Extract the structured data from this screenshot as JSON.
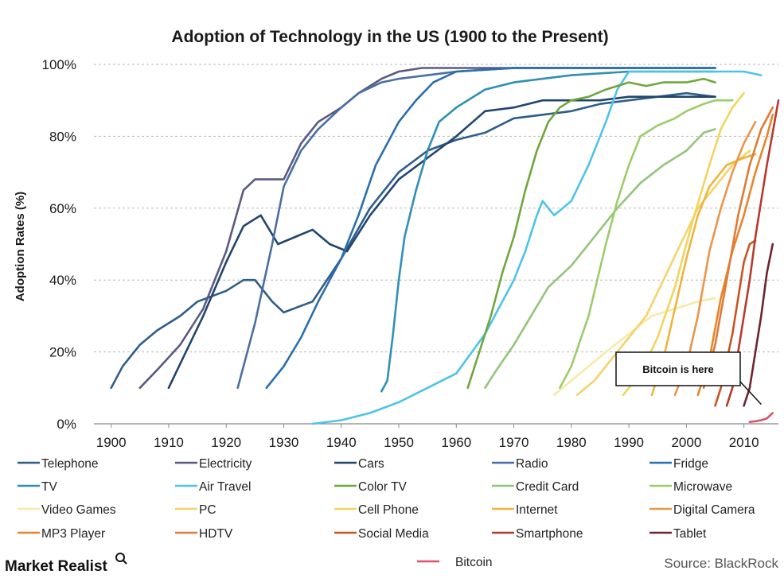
{
  "chart_data": {
    "type": "line",
    "title": "Adoption of Technology in the US (1900 to the Present)",
    "ylabel": "Adoption Rates (%)",
    "xlabel": "",
    "xlim": [
      1897,
      2016
    ],
    "ylim": [
      0,
      100
    ],
    "x_ticks": [
      1900,
      1910,
      1920,
      1930,
      1940,
      1950,
      1960,
      1970,
      1980,
      1990,
      2000,
      2010
    ],
    "x_tick_labels": [
      "1900",
      "1910",
      "1920",
      "1930",
      "1940",
      "1950",
      "1960",
      "1970",
      "1980",
      "1990",
      "2000",
      "2010"
    ],
    "y_ticks": [
      0,
      20,
      40,
      60,
      80,
      100
    ],
    "y_tick_labels": [
      "0%",
      "20%",
      "40%",
      "60%",
      "80%",
      "100%"
    ],
    "grid": "horizontal dashed",
    "legend_position": "bottom",
    "annotation": {
      "text": "Bitcoin is here",
      "points_to": [
        2013,
        1
      ]
    },
    "series": [
      {
        "name": "Telephone",
        "color": "#2f5d8a",
        "points": [
          [
            1900,
            10
          ],
          [
            1902,
            16
          ],
          [
            1905,
            22
          ],
          [
            1908,
            26
          ],
          [
            1912,
            30
          ],
          [
            1915,
            34
          ],
          [
            1920,
            37
          ],
          [
            1923,
            40
          ],
          [
            1925,
            40
          ],
          [
            1928,
            34
          ],
          [
            1930,
            31
          ],
          [
            1935,
            34
          ],
          [
            1940,
            46
          ],
          [
            1945,
            60
          ],
          [
            1950,
            70
          ],
          [
            1955,
            76
          ],
          [
            1960,
            79
          ],
          [
            1965,
            81
          ],
          [
            1970,
            85
          ],
          [
            1975,
            86
          ],
          [
            1980,
            87
          ],
          [
            1985,
            89
          ],
          [
            1990,
            90
          ],
          [
            1995,
            91
          ],
          [
            2000,
            92
          ],
          [
            2005,
            91
          ]
        ]
      },
      {
        "name": "Electricity",
        "color": "#5a5a82",
        "points": [
          [
            1905,
            10
          ],
          [
            1908,
            15
          ],
          [
            1912,
            22
          ],
          [
            1916,
            32
          ],
          [
            1920,
            48
          ],
          [
            1923,
            65
          ],
          [
            1925,
            68
          ],
          [
            1930,
            68
          ],
          [
            1933,
            78
          ],
          [
            1936,
            84
          ],
          [
            1940,
            88
          ],
          [
            1943,
            92
          ],
          [
            1947,
            96
          ],
          [
            1950,
            98
          ],
          [
            1954,
            99
          ],
          [
            1960,
            99
          ],
          [
            1970,
            99
          ],
          [
            1980,
            99
          ],
          [
            1990,
            99
          ],
          [
            2000,
            99
          ],
          [
            2005,
            99
          ]
        ]
      },
      {
        "name": "Cars",
        "color": "#22456e",
        "points": [
          [
            1910,
            10
          ],
          [
            1913,
            20
          ],
          [
            1916,
            30
          ],
          [
            1920,
            45
          ],
          [
            1923,
            55
          ],
          [
            1926,
            58
          ],
          [
            1929,
            50
          ],
          [
            1932,
            52
          ],
          [
            1935,
            54
          ],
          [
            1938,
            50
          ],
          [
            1941,
            48
          ],
          [
            1945,
            58
          ],
          [
            1950,
            68
          ],
          [
            1955,
            74
          ],
          [
            1960,
            80
          ],
          [
            1965,
            87
          ],
          [
            1970,
            88
          ],
          [
            1975,
            90
          ],
          [
            1980,
            90
          ],
          [
            1985,
            90
          ],
          [
            1990,
            91
          ],
          [
            1995,
            91
          ],
          [
            2000,
            91
          ],
          [
            2005,
            91
          ]
        ]
      },
      {
        "name": "Radio",
        "color": "#4a6ea2",
        "points": [
          [
            1922,
            10
          ],
          [
            1925,
            28
          ],
          [
            1928,
            50
          ],
          [
            1930,
            66
          ],
          [
            1933,
            76
          ],
          [
            1936,
            82
          ],
          [
            1940,
            88
          ],
          [
            1943,
            92
          ],
          [
            1947,
            95
          ],
          [
            1950,
            96
          ],
          [
            1955,
            97
          ],
          [
            1960,
            98
          ],
          [
            1970,
            99
          ],
          [
            1980,
            99
          ],
          [
            1990,
            99
          ],
          [
            2000,
            99
          ],
          [
            2005,
            99
          ]
        ]
      },
      {
        "name": "Fridge",
        "color": "#2a6fae",
        "points": [
          [
            1927,
            10
          ],
          [
            1930,
            16
          ],
          [
            1933,
            24
          ],
          [
            1936,
            34
          ],
          [
            1940,
            46
          ],
          [
            1943,
            58
          ],
          [
            1946,
            72
          ],
          [
            1950,
            84
          ],
          [
            1953,
            90
          ],
          [
            1956,
            95
          ],
          [
            1960,
            98
          ],
          [
            1970,
            99
          ],
          [
            1980,
            99
          ],
          [
            1990,
            99
          ],
          [
            2000,
            99
          ],
          [
            2005,
            99
          ]
        ]
      },
      {
        "name": "TV",
        "color": "#2f8fb5",
        "points": [
          [
            1947,
            9
          ],
          [
            1948,
            12
          ],
          [
            1949,
            25
          ],
          [
            1950,
            40
          ],
          [
            1951,
            52
          ],
          [
            1953,
            65
          ],
          [
            1955,
            76
          ],
          [
            1957,
            84
          ],
          [
            1960,
            88
          ],
          [
            1965,
            93
          ],
          [
            1970,
            95
          ],
          [
            1980,
            97
          ],
          [
            1990,
            98
          ],
          [
            2000,
            98
          ],
          [
            2005,
            98
          ]
        ]
      },
      {
        "name": "Air Travel",
        "color": "#4ec3ea",
        "points": [
          [
            1935,
            0
          ],
          [
            1940,
            1
          ],
          [
            1945,
            3
          ],
          [
            1950,
            6
          ],
          [
            1955,
            10
          ],
          [
            1960,
            14
          ],
          [
            1965,
            25
          ],
          [
            1968,
            34
          ],
          [
            1970,
            40
          ],
          [
            1972,
            48
          ],
          [
            1974,
            58
          ],
          [
            1975,
            62
          ],
          [
            1977,
            58
          ],
          [
            1980,
            62
          ],
          [
            1983,
            72
          ],
          [
            1986,
            84
          ],
          [
            1988,
            93
          ],
          [
            1990,
            98
          ],
          [
            1995,
            98
          ],
          [
            2000,
            98
          ],
          [
            2005,
            98
          ],
          [
            2010,
            98
          ],
          [
            2013,
            97
          ]
        ]
      },
      {
        "name": "Color TV",
        "color": "#6fa73d",
        "points": [
          [
            1962,
            10
          ],
          [
            1964,
            20
          ],
          [
            1966,
            30
          ],
          [
            1968,
            42
          ],
          [
            1970,
            52
          ],
          [
            1972,
            65
          ],
          [
            1974,
            76
          ],
          [
            1976,
            84
          ],
          [
            1978,
            88
          ],
          [
            1980,
            90
          ],
          [
            1983,
            91
          ],
          [
            1986,
            93
          ],
          [
            1990,
            95
          ],
          [
            1993,
            94
          ],
          [
            1996,
            95
          ],
          [
            2000,
            95
          ],
          [
            2003,
            96
          ],
          [
            2005,
            95
          ]
        ]
      },
      {
        "name": "Credit Card",
        "color": "#93c47a",
        "points": [
          [
            1965,
            10
          ],
          [
            1967,
            15
          ],
          [
            1970,
            22
          ],
          [
            1973,
            30
          ],
          [
            1976,
            38
          ],
          [
            1980,
            44
          ],
          [
            1984,
            52
          ],
          [
            1988,
            60
          ],
          [
            1992,
            67
          ],
          [
            1996,
            72
          ],
          [
            2000,
            76
          ],
          [
            2003,
            81
          ],
          [
            2005,
            82
          ]
        ]
      },
      {
        "name": "Microwave",
        "color": "#9ccc6a",
        "points": [
          [
            1978,
            10
          ],
          [
            1980,
            16
          ],
          [
            1983,
            30
          ],
          [
            1986,
            50
          ],
          [
            1988,
            62
          ],
          [
            1990,
            72
          ],
          [
            1992,
            80
          ],
          [
            1995,
            83
          ],
          [
            1998,
            85
          ],
          [
            2000,
            87
          ],
          [
            2003,
            89
          ],
          [
            2005,
            90
          ],
          [
            2008,
            90
          ]
        ]
      },
      {
        "name": "Video Games",
        "color": "#f6eaa6",
        "points": [
          [
            1977,
            8
          ],
          [
            1980,
            12
          ],
          [
            1983,
            16
          ],
          [
            1986,
            20
          ],
          [
            1990,
            25
          ],
          [
            1994,
            30
          ],
          [
            1998,
            32
          ],
          [
            2002,
            34
          ],
          [
            2005,
            35
          ]
        ]
      },
      {
        "name": "PC",
        "color": "#f5d36b",
        "points": [
          [
            1981,
            8
          ],
          [
            1984,
            12
          ],
          [
            1987,
            18
          ],
          [
            1990,
            24
          ],
          [
            1993,
            30
          ],
          [
            1996,
            40
          ],
          [
            1999,
            50
          ],
          [
            2002,
            60
          ],
          [
            2005,
            66
          ],
          [
            2008,
            72
          ],
          [
            2011,
            76
          ]
        ]
      },
      {
        "name": "Cell Phone",
        "color": "#f1d45e",
        "points": [
          [
            1989,
            8
          ],
          [
            1992,
            14
          ],
          [
            1995,
            24
          ],
          [
            1998,
            38
          ],
          [
            2001,
            56
          ],
          [
            2004,
            72
          ],
          [
            2006,
            82
          ],
          [
            2008,
            88
          ],
          [
            2010,
            92
          ]
        ]
      },
      {
        "name": "Internet",
        "color": "#efb43c",
        "points": [
          [
            1994,
            8
          ],
          [
            1996,
            18
          ],
          [
            1998,
            32
          ],
          [
            2000,
            46
          ],
          [
            2002,
            58
          ],
          [
            2004,
            66
          ],
          [
            2007,
            72
          ],
          [
            2010,
            74
          ],
          [
            2012,
            75
          ]
        ]
      },
      {
        "name": "Digital Camera",
        "color": "#e9954a",
        "points": [
          [
            1998,
            8
          ],
          [
            2000,
            16
          ],
          [
            2002,
            30
          ],
          [
            2004,
            48
          ],
          [
            2006,
            60
          ],
          [
            2008,
            70
          ],
          [
            2010,
            78
          ],
          [
            2012,
            84
          ]
        ]
      },
      {
        "name": "MP3 Player",
        "color": "#e8852a",
        "points": [
          [
            2002,
            8
          ],
          [
            2004,
            18
          ],
          [
            2006,
            35
          ],
          [
            2008,
            48
          ],
          [
            2010,
            58
          ],
          [
            2012,
            70
          ],
          [
            2014,
            80
          ],
          [
            2015,
            86
          ]
        ]
      },
      {
        "name": "HDTV",
        "color": "#e07a35",
        "points": [
          [
            2003,
            10
          ],
          [
            2005,
            22
          ],
          [
            2007,
            40
          ],
          [
            2009,
            58
          ],
          [
            2011,
            72
          ],
          [
            2013,
            82
          ],
          [
            2015,
            88
          ]
        ]
      },
      {
        "name": "Social Media",
        "color": "#c85520",
        "points": [
          [
            2005,
            5
          ],
          [
            2006,
            10
          ],
          [
            2008,
            25
          ],
          [
            2009,
            35
          ],
          [
            2010,
            45
          ],
          [
            2011,
            50
          ],
          [
            2012,
            51
          ]
        ]
      },
      {
        "name": "Smartphone",
        "color": "#b83a2a",
        "points": [
          [
            2007,
            5
          ],
          [
            2008,
            10
          ],
          [
            2009,
            20
          ],
          [
            2010,
            30
          ],
          [
            2011,
            40
          ],
          [
            2012,
            52
          ],
          [
            2014,
            72
          ],
          [
            2016,
            90
          ]
        ]
      },
      {
        "name": "Tablet",
        "color": "#6e2430",
        "points": [
          [
            2010,
            5
          ],
          [
            2011,
            10
          ],
          [
            2012,
            20
          ],
          [
            2013,
            30
          ],
          [
            2014,
            42
          ],
          [
            2015,
            50
          ]
        ]
      },
      {
        "name": "Bitcoin",
        "color": "#e0506a",
        "points": [
          [
            2011,
            0.5
          ],
          [
            2012,
            0.7
          ],
          [
            2013,
            1
          ],
          [
            2014,
            1.5
          ],
          [
            2015,
            3
          ]
        ]
      }
    ]
  },
  "footer": {
    "brand": "Market Realist",
    "source": "Source: BlackRock"
  }
}
